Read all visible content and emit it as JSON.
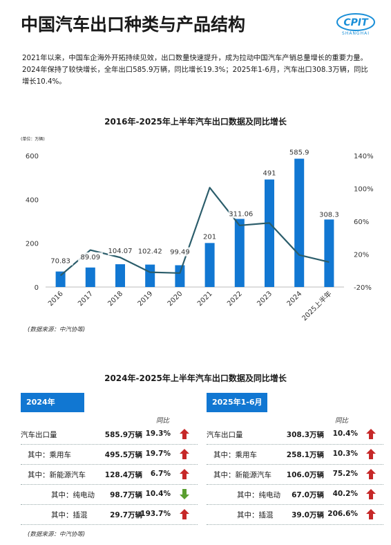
{
  "header": {
    "title": "中国汽车出口种类与产品结构",
    "logo_text": "CPIT",
    "logo_subtext": "SHANGHAI"
  },
  "intro": {
    "line1": "2021年以来，中国车企海外开拓持续见效，出口数量快速提升，成为拉动中国汽车产销总量增长的重要力量。",
    "line2": "2024年保持了较快增长，全年出口585.9万辆，同比增长19.3%；2025年1-6月，汽车出口308.3万辆，同比",
    "line3": "增长10.4%。"
  },
  "chart_data": {
    "type": "bar",
    "title": "2016年-2025年上半年汽车出口数据及同比增长",
    "unit_note": "(单位：万辆)",
    "categories": [
      "2016",
      "2017",
      "2018",
      "2019",
      "2020",
      "2021",
      "2022",
      "2023",
      "2024",
      "2025上半年"
    ],
    "series": [
      {
        "kind": "bar",
        "axis": "left",
        "values": [
          70.83,
          89.09,
          104.07,
          102.42,
          99.49,
          201,
          311.06,
          491,
          585.9,
          308.3
        ],
        "labels": [
          "70.83",
          "89.09",
          "104.07",
          "102.42",
          "99.49",
          "201",
          "311.06",
          "491",
          "585.9",
          "308.3"
        ]
      },
      {
        "kind": "line",
        "axis": "right",
        "values": [
          -6,
          25,
          16,
          -2,
          -3,
          101,
          55,
          58,
          19,
          10.4
        ]
      }
    ],
    "yleft": {
      "ticks": [
        "0",
        "200",
        "400",
        "600"
      ],
      "ylim": [
        0,
        600
      ]
    },
    "yright": {
      "ticks": [
        "-20%",
        "20%",
        "60%",
        "100%",
        "140%"
      ],
      "ylim": [
        -20,
        140
      ]
    },
    "grid": false,
    "colors": {
      "bar": "#1177d2",
      "line": "#2b5d6b"
    }
  },
  "chart_source": "(数据来源：中汽协等)",
  "table": {
    "title": "2024年-2025年上半年汽车出口数据及同比增长",
    "yoy_header": "同比",
    "source": "(数据来源：中汽协等)",
    "panels": [
      {
        "header": "2024年",
        "rows": [
          {
            "label": "汽车出口量",
            "value": "585.9万辆",
            "yoy": "19.3%",
            "trend": "up"
          },
          {
            "label": "其中：乘用车",
            "value": "495.5万辆",
            "yoy": "19.7%",
            "trend": "up"
          },
          {
            "label": "其中：新能源汽车",
            "value": "128.4万辆",
            "yoy": "6.7%",
            "trend": "up"
          },
          {
            "label": "其中：纯电动",
            "value": "98.7万辆",
            "yoy": "10.4%",
            "trend": "down"
          },
          {
            "label": "其中：插混",
            "value": "29.7万辆",
            "yoy": "193.7%",
            "trend": "up"
          }
        ]
      },
      {
        "header": "2025年1-6月",
        "rows": [
          {
            "label": "汽车出口量",
            "value": "308.3万辆",
            "yoy": "10.4%",
            "trend": "up"
          },
          {
            "label": "其中：乘用车",
            "value": "258.1万辆",
            "yoy": "10.3%",
            "trend": "up"
          },
          {
            "label": "其中：新能源汽车",
            "value": "106.0万辆",
            "yoy": "75.2%",
            "trend": "up"
          },
          {
            "label": "其中：纯电动",
            "value": "67.0万辆",
            "yoy": "40.2%",
            "trend": "up"
          },
          {
            "label": "其中：插混",
            "value": "39.0万辆",
            "yoy": "206.6%",
            "trend": "up"
          }
        ]
      }
    ]
  },
  "colors": {
    "accent": "#1177d2",
    "up": "#c62828",
    "down": "#5a9e2f",
    "line": "#2b5d6b"
  }
}
